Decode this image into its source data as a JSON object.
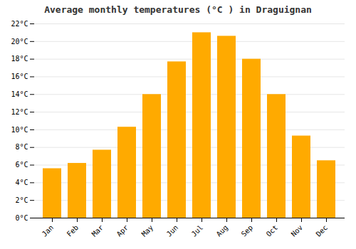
{
  "chart_data": {
    "type": "bar",
    "title": "Average monthly temperatures (°C ) in Draguignan",
    "categories": [
      "Jan",
      "Feb",
      "Mar",
      "Apr",
      "May",
      "Jun",
      "Jul",
      "Aug",
      "Sep",
      "Oct",
      "Nov",
      "Dec"
    ],
    "values": [
      5.6,
      6.2,
      7.7,
      10.3,
      14.0,
      17.7,
      21.0,
      20.6,
      18.0,
      14.0,
      9.3,
      6.5
    ],
    "color": "#FFAA00",
    "ylim": [
      0,
      22
    ],
    "yticks": [
      {
        "value": 0,
        "label": "0°C"
      },
      {
        "value": 2,
        "label": "2°C"
      },
      {
        "value": 4,
        "label": "4°C"
      },
      {
        "value": 6,
        "label": "6°C"
      },
      {
        "value": 8,
        "label": "8°C"
      },
      {
        "value": 10,
        "label": "10°C"
      },
      {
        "value": 12,
        "label": "12°C"
      },
      {
        "value": 14,
        "label": "14°C"
      },
      {
        "value": 16,
        "label": "16°C"
      },
      {
        "value": 18,
        "label": "18°C"
      },
      {
        "value": 20,
        "label": "20°C"
      },
      {
        "value": 22,
        "label": "22°C"
      }
    ],
    "grid": true
  }
}
